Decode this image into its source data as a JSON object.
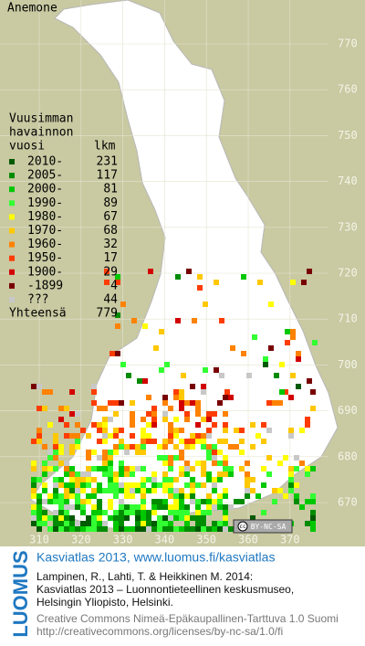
{
  "map": {
    "title": "Anemone",
    "legend": {
      "title_lines": [
        "Vuusimman",
        "havainnon",
        "vuosi"
      ],
      "count_header": "lkm",
      "rows": [
        {
          "label": "2010-",
          "count": 231,
          "color": "#005a00"
        },
        {
          "label": "2005-",
          "count": 117,
          "color": "#008c00"
        },
        {
          "label": "2000-",
          "count": 81,
          "color": "#00c800"
        },
        {
          "label": "1990-",
          "count": 89,
          "color": "#32ff32"
        },
        {
          "label": "1980-",
          "count": 67,
          "color": "#ffff00"
        },
        {
          "label": "1970-",
          "count": 68,
          "color": "#ffc800"
        },
        {
          "label": "1960-",
          "count": 32,
          "color": "#ff8200"
        },
        {
          "label": "1950-",
          "count": 17,
          "color": "#ff3c00"
        },
        {
          "label": "1900-",
          "count": 29,
          "color": "#d20000"
        },
        {
          "label": "-1899",
          "count": 4,
          "color": "#780000"
        },
        {
          "label": "???",
          "count": 44,
          "color": "#c8c8c8"
        }
      ],
      "total_label": "Yhteensä",
      "total": 779
    },
    "xticks": [
      310,
      320,
      330,
      340,
      350,
      360,
      370
    ],
    "yticks": [
      670,
      680,
      690,
      700,
      710,
      720,
      730,
      740,
      750,
      760,
      770
    ],
    "badge": [
      "cc",
      "BY-NC-SA"
    ]
  },
  "footer": {
    "logo": "LUOMUS",
    "heading": "Kasviatlas 2013, www.luomus.fi/kasviatlas",
    "citation": [
      "Lampinen, R., Lahti, T. & Heikkinen M. 2014:",
      "Kasviatlas 2013 – Luonnontieteellinen keskusmuseo,",
      "Helsingin Yliopisto, Helsinki."
    ],
    "license": [
      "Creative Commons Nimeä-Epäkaupallinen-Tarttuva 1.0 Suomi",
      "http://creativecommons.org/licenses/by-nc-sa/1.0/fi"
    ]
  }
}
